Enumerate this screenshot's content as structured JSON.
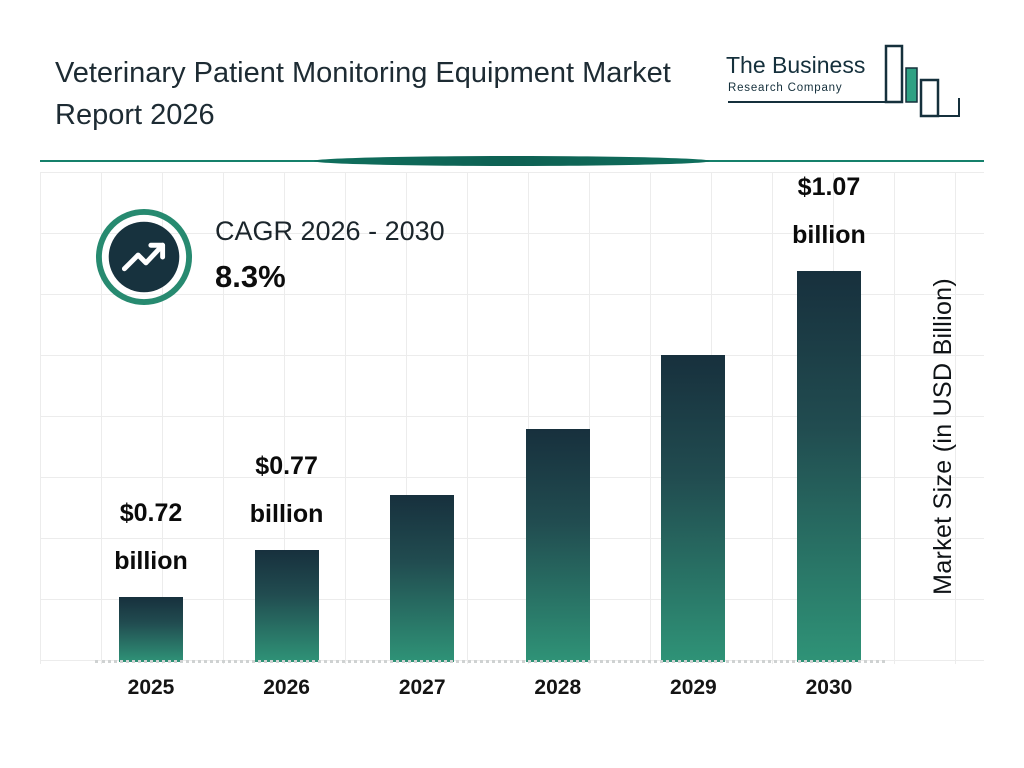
{
  "header": {
    "title": "Veterinary Patient Monitoring Equipment Market Report 2026",
    "logo": {
      "name_line1": "The Business",
      "name_line2": "Research Company"
    }
  },
  "cagr": {
    "label": "CAGR 2026 - 2030",
    "value": "8.3%"
  },
  "chart_data": {
    "type": "bar",
    "title": "Veterinary Patient Monitoring Equipment Market Size",
    "categories": [
      "2025",
      "2026",
      "2027",
      "2028",
      "2029",
      "2030"
    ],
    "values": [
      0.72,
      0.77,
      0.83,
      0.9,
      0.98,
      1.07
    ],
    "annotations": [
      "$0.72 billion",
      "$0.77 billion",
      null,
      null,
      null,
      "$1.07 billion"
    ],
    "xlabel": "",
    "ylabel": "Market Size (in USD Billion)",
    "ylim": [
      0.65,
      1.15
    ],
    "grid": true,
    "legend": false
  },
  "colors": {
    "accent_teal": "#15806b",
    "dark_navy": "#17303d",
    "bar_gradient_top": "#17303d",
    "bar_gradient_bottom": "#2f9377",
    "grid_line": "#ececec",
    "dotted_baseline": "#cfd2d2"
  }
}
